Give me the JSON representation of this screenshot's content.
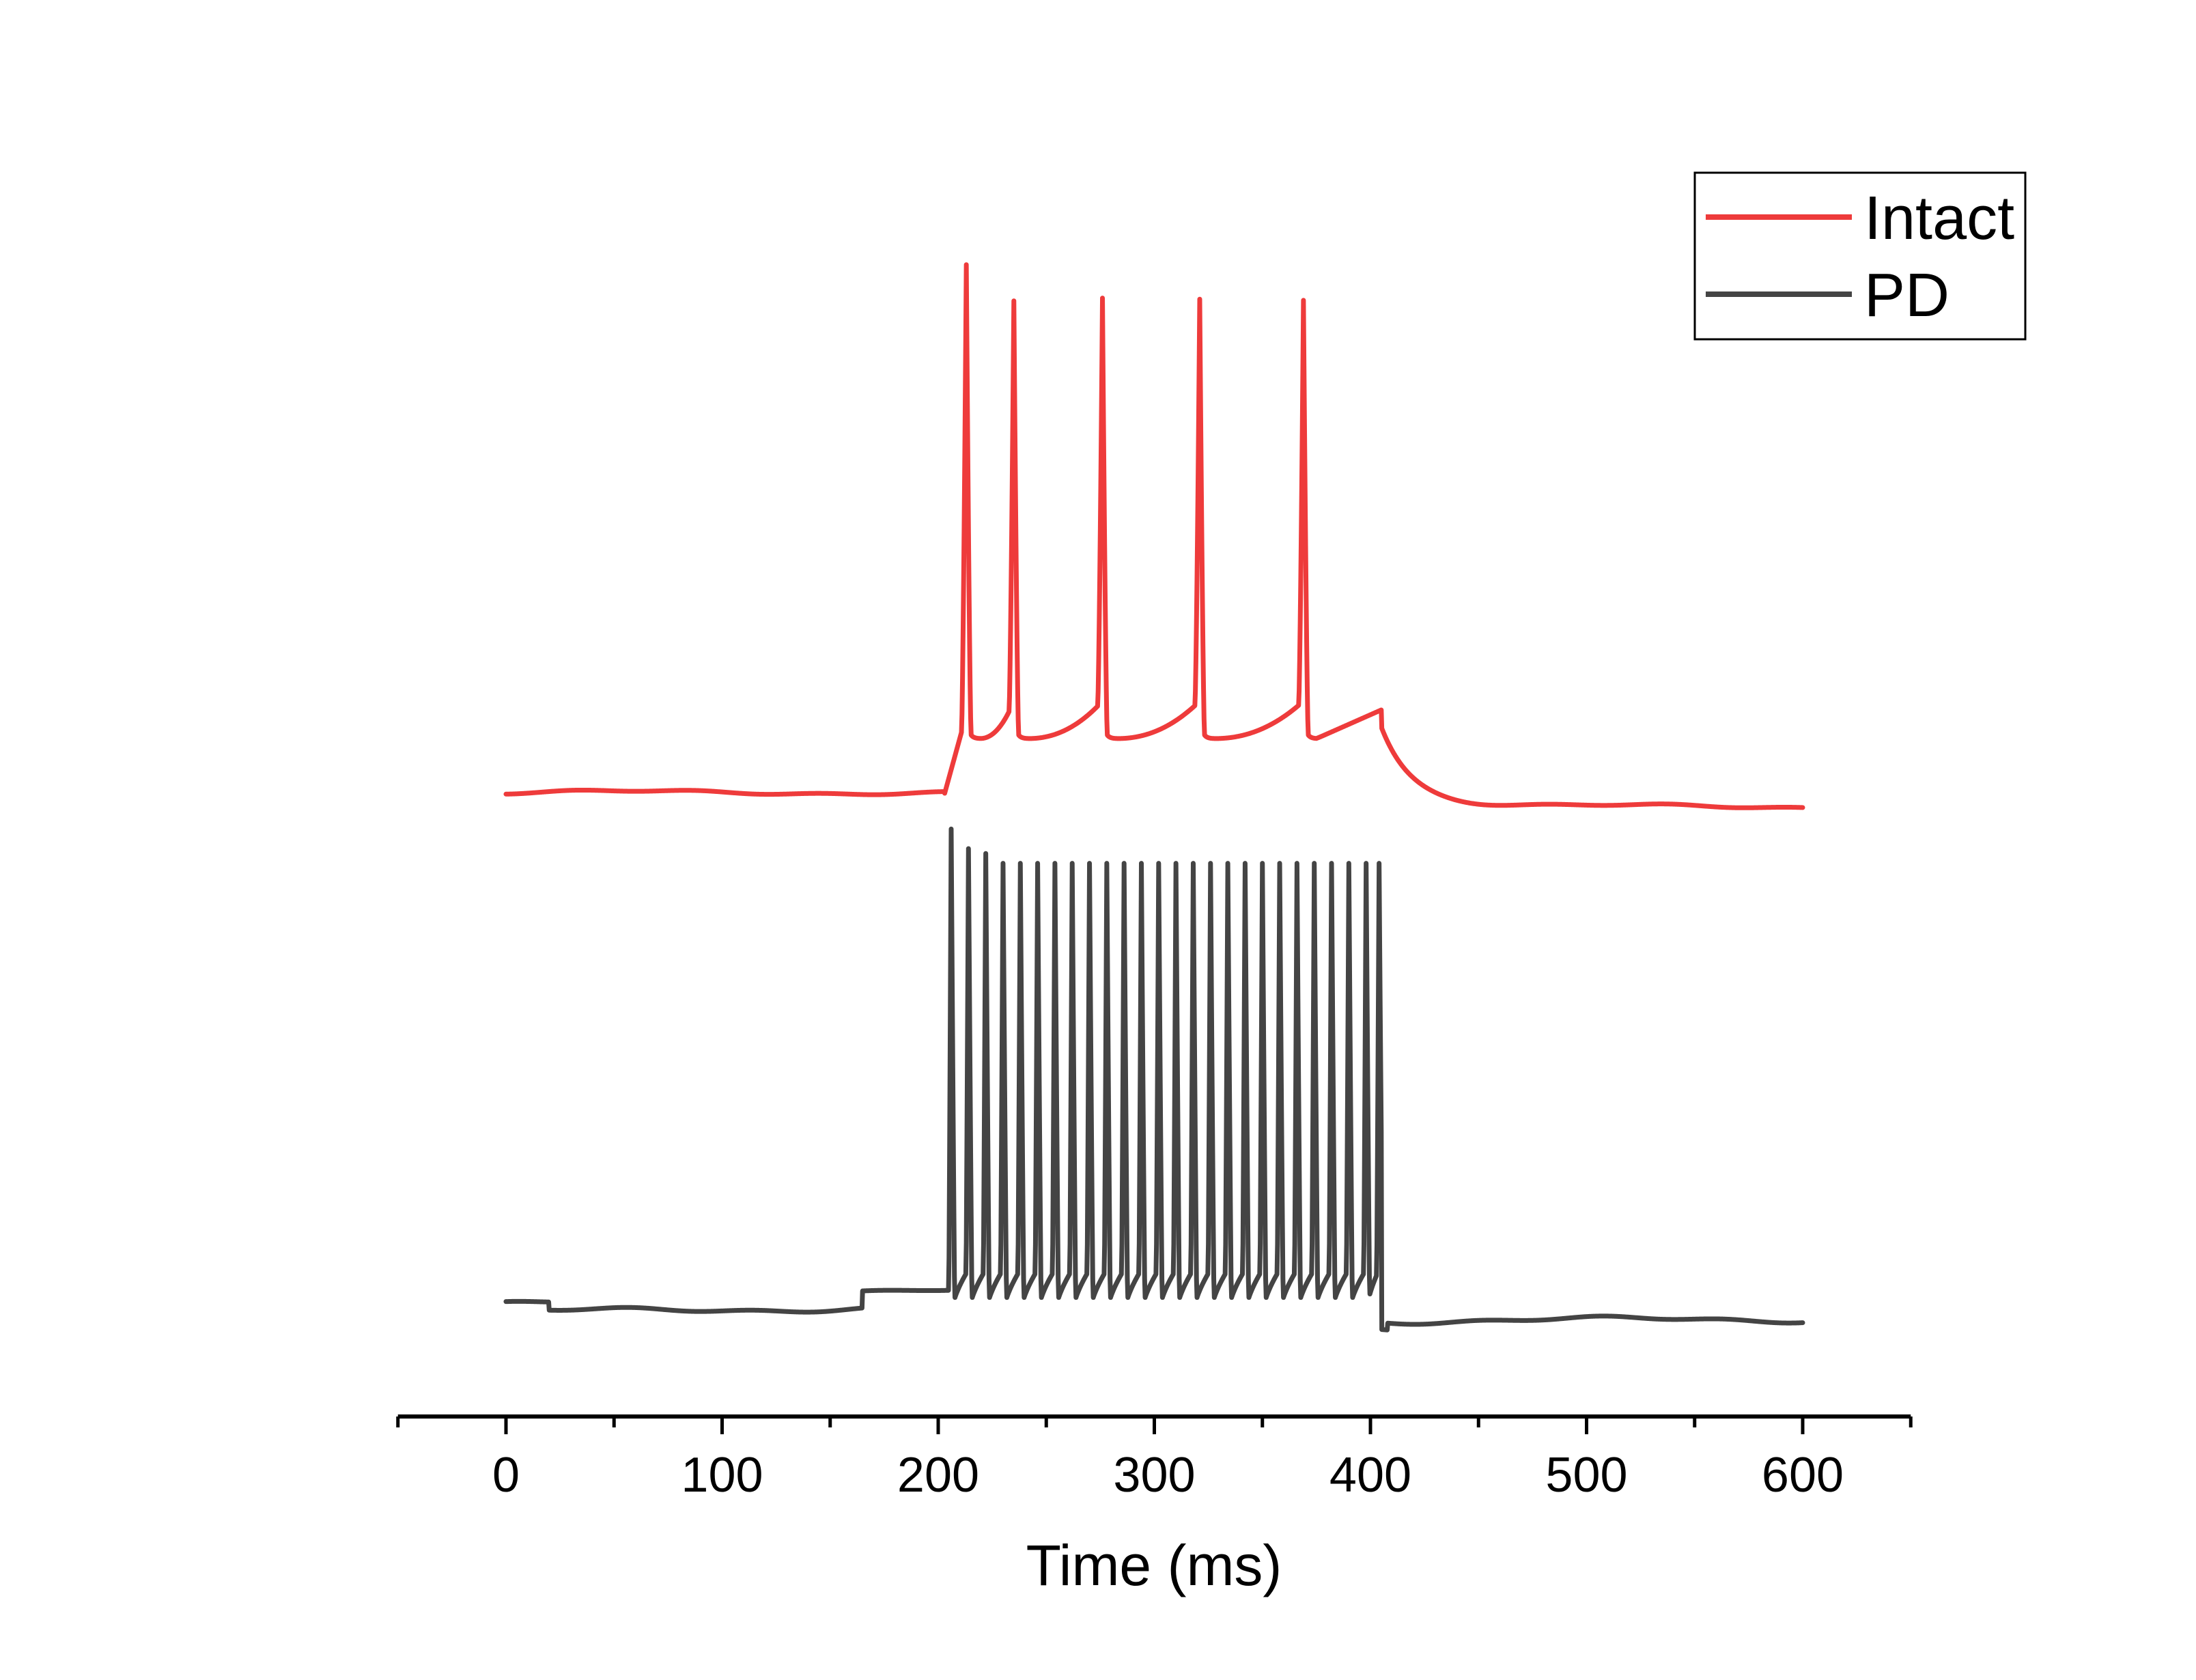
{
  "chart_data": {
    "type": "line",
    "title": "",
    "xlabel": "Time (ms)",
    "ylabel": "",
    "xlim": [
      -50,
      650
    ],
    "x_ticks": [
      0,
      100,
      200,
      300,
      400,
      500,
      600
    ],
    "x_tick_labels": [
      "0",
      "100",
      "200",
      "300",
      "400",
      "500",
      "600"
    ],
    "x_minor_ticks": [
      -50,
      50,
      150,
      250,
      350,
      450,
      550,
      650
    ],
    "stimulus_window_ms": [
      205,
      405
    ],
    "grid": false,
    "legend": {
      "position": "top-right"
    },
    "series": [
      {
        "name": "Intact",
        "color": "#ee3b3b",
        "spike_times_ms": [
          213,
          235,
          276,
          321,
          369
        ],
        "spike_peak_levels": [
          0.95,
          0.885,
          0.89,
          0.888,
          0.886
        ]
      },
      {
        "name": "PD",
        "color": "#444444",
        "spike_times_ms": [
          206,
          214,
          222,
          230,
          238,
          246,
          254,
          262,
          270,
          278,
          286,
          294,
          302,
          310,
          318,
          326,
          334,
          342,
          350,
          358,
          366,
          374,
          382,
          390,
          398,
          404
        ],
        "spike_peak_levels": [
          0.98,
          0.94,
          0.93,
          0.91,
          0.91,
          0.91,
          0.91,
          0.91,
          0.91,
          0.91,
          0.91,
          0.91,
          0.91,
          0.91,
          0.91,
          0.91,
          0.91,
          0.91,
          0.91,
          0.91,
          0.91,
          0.91,
          0.91,
          0.91,
          0.91,
          0.91
        ]
      }
    ]
  }
}
